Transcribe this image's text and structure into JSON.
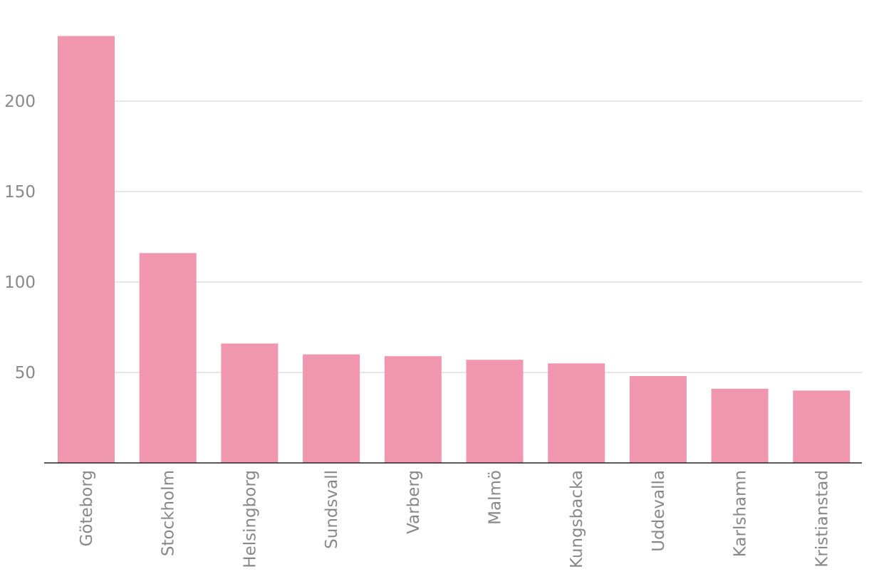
{
  "chart_data": {
    "type": "bar",
    "title": "",
    "xlabel": "",
    "ylabel": "",
    "categories": [
      "Göteborg",
      "Stockholm",
      "Helsingborg",
      "Sundsvall",
      "Varberg",
      "Malmö",
      "Kungsbacka",
      "Uddevalla",
      "Karlshamn",
      "Kristianstad"
    ],
    "values": [
      236,
      116,
      66,
      60,
      59,
      57,
      55,
      48,
      41,
      40
    ],
    "yticks": [
      50,
      100,
      150,
      200
    ],
    "ylim": [
      0,
      240
    ],
    "grid": true,
    "legend": "none",
    "bar_color": "#f096ae"
  }
}
